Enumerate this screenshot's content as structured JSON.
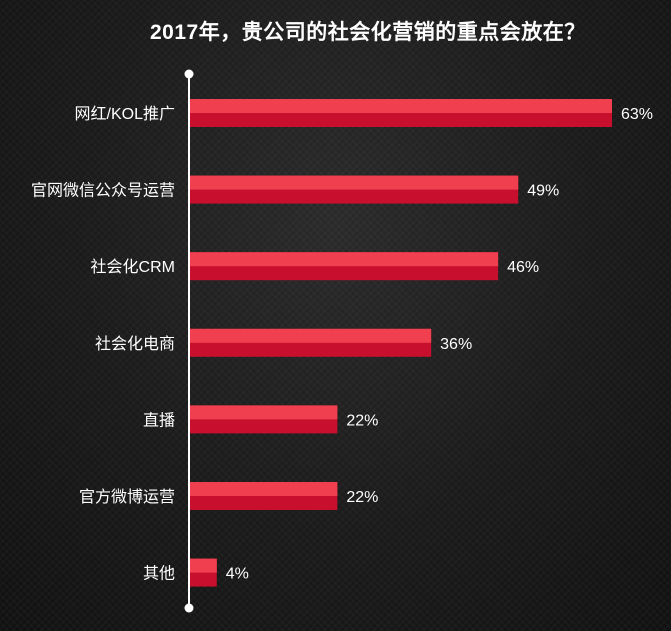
{
  "chart_data": {
    "type": "bar",
    "orientation": "horizontal",
    "title": "2017年，贵公司的社会化营销的重点会放在？",
    "categories": [
      "网红/KOL推广",
      "官网微信公众号运营",
      "社会化CRM",
      "社会化电商",
      "直播",
      "官方微博运营",
      "其他"
    ],
    "values": [
      63,
      49,
      46,
      36,
      22,
      22,
      4
    ],
    "value_labels": [
      "63%",
      "49%",
      "46%",
      "36%",
      "22%",
      "22%",
      "4%"
    ],
    "unit": "%",
    "xlim": [
      0,
      65
    ],
    "grid": false,
    "legend": "none"
  },
  "colors": {
    "background": "#161616",
    "bar_top": "#f0404f",
    "bar_bottom": "#c8102e",
    "axis": "#ffffff",
    "text": "#ffffff"
  }
}
